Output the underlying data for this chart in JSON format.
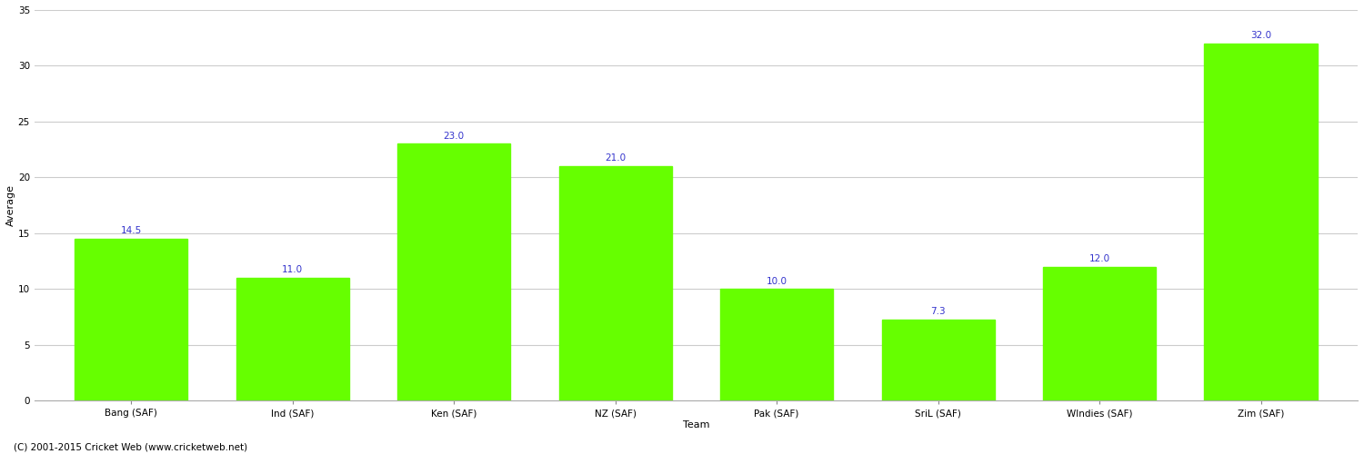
{
  "categories": [
    "Bang (SAF)",
    "Ind (SAF)",
    "Ken (SAF)",
    "NZ (SAF)",
    "Pak (SAF)",
    "SriL (SAF)",
    "WIndies (SAF)",
    "Zim (SAF)"
  ],
  "values": [
    14.5,
    11.0,
    23.0,
    21.0,
    10.0,
    7.3,
    12.0,
    32.0
  ],
  "bar_color": "#66ff00",
  "bar_edge_color": "#66ff00",
  "label_color": "#3333cc",
  "ylabel": "Average",
  "xlabel": "Team",
  "ylim": [
    0,
    35
  ],
  "yticks": [
    0,
    5,
    10,
    15,
    20,
    25,
    30,
    35
  ],
  "grid_color": "#cccccc",
  "background_color": "#ffffff",
  "footer": "(C) 2001-2015 Cricket Web (www.cricketweb.net)",
  "label_fontsize": 7.5,
  "axis_label_fontsize": 8,
  "tick_fontsize": 7.5,
  "footer_fontsize": 7.5,
  "bar_width": 0.7
}
